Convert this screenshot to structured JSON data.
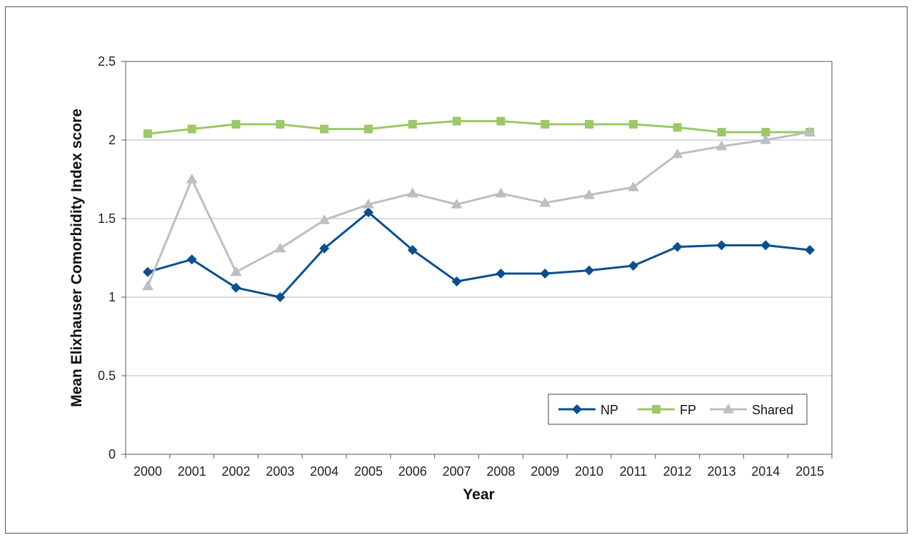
{
  "chart_data": {
    "type": "line",
    "title": "",
    "xlabel": "Year",
    "ylabel": "Mean Elixhauser Comorbidity Index score",
    "categories": [
      "2000",
      "2001",
      "2002",
      "2003",
      "2004",
      "2005",
      "2006",
      "2007",
      "2008",
      "2009",
      "2010",
      "2011",
      "2012",
      "2013",
      "2014",
      "2015"
    ],
    "ylim": [
      0,
      2.5
    ],
    "yticks": [
      "0",
      "0.5",
      "1",
      "1.5",
      "2",
      "2.5"
    ],
    "grid": "horizontal",
    "legend_position": "bottom-right",
    "series": [
      {
        "name": "NP",
        "color": "#0a4f8f",
        "marker": "diamond",
        "values": [
          1.16,
          1.24,
          1.06,
          1.0,
          1.31,
          1.54,
          1.3,
          1.1,
          1.15,
          1.15,
          1.17,
          1.2,
          1.32,
          1.33,
          1.33,
          1.3
        ]
      },
      {
        "name": "FP",
        "color": "#9cc867",
        "marker": "square",
        "values": [
          2.04,
          2.07,
          2.1,
          2.1,
          2.07,
          2.07,
          2.1,
          2.12,
          2.12,
          2.1,
          2.1,
          2.1,
          2.08,
          2.05,
          2.05,
          2.05
        ]
      },
      {
        "name": "Shared",
        "color": "#bdbec4",
        "marker": "triangle",
        "values": [
          1.07,
          1.75,
          1.16,
          1.31,
          1.49,
          1.59,
          1.66,
          1.59,
          1.66,
          1.6,
          1.65,
          1.7,
          1.91,
          1.96,
          2.0,
          2.05
        ]
      }
    ]
  }
}
